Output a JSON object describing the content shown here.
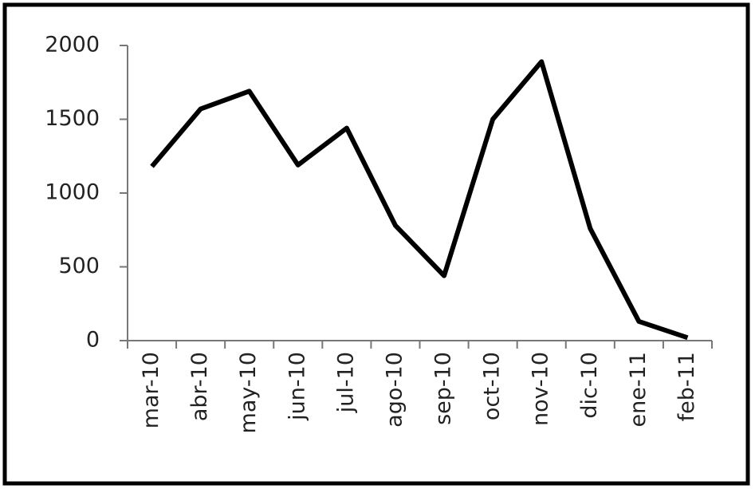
{
  "chart_data": {
    "type": "line",
    "categories": [
      "mar-10",
      "abr-10",
      "may-10",
      "jun-10",
      "jul-10",
      "ago-10",
      "sep-10",
      "oct-10",
      "nov-10",
      "dic-10",
      "ene-11",
      "feb-11"
    ],
    "values": [
      1180,
      1570,
      1690,
      1190,
      1440,
      780,
      440,
      1500,
      1890,
      760,
      130,
      20
    ],
    "color": "#000000",
    "ylim": [
      0,
      2000
    ],
    "yticks": [
      0,
      500,
      1000,
      1500,
      2000
    ],
    "grid": false
  }
}
